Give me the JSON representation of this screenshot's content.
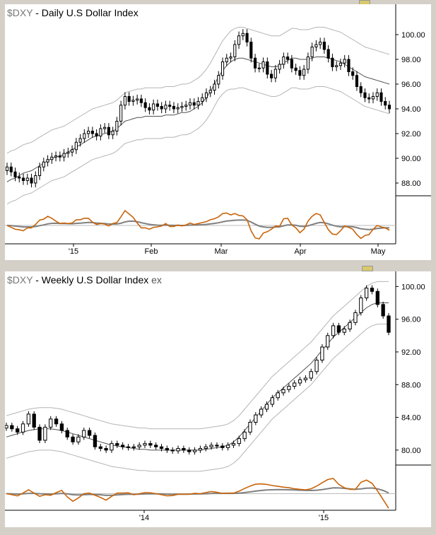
{
  "chart_data": [
    {
      "type": "candlestick",
      "title_symbol": "$DXY",
      "title": "- Daily  U.S Dollar Index",
      "ylim": [
        86.0,
        102.0
      ],
      "yticks": [
        "100.00",
        "98.00",
        "96.00",
        "94.00",
        "92.00",
        "90.00",
        "88.00"
      ],
      "xticks": [
        "'15",
        "Feb",
        "Mar",
        "Apr",
        "May"
      ],
      "legend_placement": "none",
      "series": [
        {
          "name": "Price",
          "values": [
            89.3,
            88.9,
            88.5,
            88.4,
            88.2,
            88.4,
            88.0,
            88.6,
            89.3,
            89.7,
            89.9,
            90.1,
            90.2,
            90.1,
            90.4,
            90.5,
            90.7,
            91.3,
            91.6,
            92.0,
            92.2,
            92.0,
            91.8,
            92.4,
            92.5,
            91.9,
            92.2,
            93.0,
            94.3,
            95.0,
            94.6,
            94.7,
            94.8,
            94.5,
            94.1,
            93.9,
            94.4,
            94.2,
            94.0,
            94.3,
            94.2,
            94.0,
            94.1,
            94.2,
            94.3,
            94.5,
            94.3,
            94.6,
            94.9,
            95.3,
            95.5,
            96.0,
            96.7,
            97.8,
            98.1,
            98.2,
            99.2,
            99.9,
            100.1,
            99.4,
            98.1,
            97.3,
            97.3,
            97.8,
            96.8,
            96.5,
            97.2,
            97.6,
            98.2,
            98.0,
            97.3,
            97.1,
            96.7,
            97.2,
            98.2,
            99.0,
            99.2,
            99.4,
            98.8,
            98.1,
            97.4,
            97.5,
            97.7,
            98.0,
            97.0,
            96.7,
            95.8,
            95.3,
            94.9,
            94.8,
            95.0,
            95.3,
            94.6,
            94.3,
            94.0
          ]
        },
        {
          "name": "Upper band",
          "values": [
            90.4,
            90.6,
            90.7,
            90.9,
            91.1,
            91.2,
            91.3,
            91.5,
            91.7,
            91.9,
            92.1,
            92.3,
            92.4,
            92.5,
            92.6,
            92.8,
            93.0,
            93.2,
            93.4,
            93.6,
            93.8,
            94.0,
            94.1,
            94.2,
            94.3,
            94.4,
            94.5,
            94.7,
            95.0,
            95.3,
            95.4,
            95.5,
            95.6,
            95.6,
            95.7,
            95.7,
            95.7,
            95.7,
            95.7,
            95.8,
            95.8,
            95.8,
            95.9,
            96.0,
            96.0,
            96.1,
            96.3,
            96.5,
            96.8,
            97.2,
            97.7,
            98.3,
            98.9,
            99.5,
            99.9,
            100.3,
            100.5,
            100.6,
            100.6,
            100.5,
            100.4,
            100.3,
            100.2,
            100.1,
            100.0,
            99.9,
            99.9,
            99.9,
            100.1,
            100.3,
            100.5,
            100.5,
            100.4,
            100.4,
            100.4,
            100.5,
            100.6,
            100.6,
            100.6,
            100.5,
            100.4,
            100.3,
            100.2,
            100.0,
            99.8,
            99.6,
            99.4,
            99.2,
            99.0,
            98.9,
            98.8,
            98.7,
            98.6,
            98.5,
            98.4
          ]
        },
        {
          "name": "Middle band",
          "values": [
            88.1,
            88.3,
            88.4,
            88.6,
            88.8,
            88.9,
            89.0,
            89.2,
            89.4,
            89.6,
            89.8,
            90.0,
            90.1,
            90.2,
            90.3,
            90.5,
            90.7,
            90.9,
            91.1,
            91.3,
            91.5,
            91.7,
            91.8,
            91.9,
            92.0,
            92.1,
            92.2,
            92.4,
            92.7,
            93.0,
            93.1,
            93.2,
            93.3,
            93.3,
            93.4,
            93.4,
            93.4,
            93.4,
            93.4,
            93.5,
            93.5,
            93.5,
            93.6,
            93.7,
            93.7,
            93.8,
            94.0,
            94.2,
            94.5,
            94.9,
            95.4,
            96.0,
            96.6,
            97.1,
            97.5,
            97.8,
            98.0,
            98.1,
            98.1,
            98.0,
            97.9,
            97.8,
            97.7,
            97.6,
            97.5,
            97.4,
            97.4,
            97.5,
            97.7,
            97.9,
            98.1,
            98.1,
            98.0,
            98.0,
            98.0,
            98.1,
            98.2,
            98.2,
            98.2,
            98.1,
            98.0,
            97.9,
            97.8,
            97.6,
            97.4,
            97.2,
            97.0,
            96.8,
            96.6,
            96.5,
            96.4,
            96.3,
            96.2,
            96.1,
            96.0
          ]
        },
        {
          "name": "Lower band",
          "values": [
            86.3,
            86.5,
            86.6,
            86.8,
            87.0,
            87.1,
            87.2,
            87.4,
            87.6,
            87.8,
            88.0,
            88.2,
            88.3,
            88.4,
            88.5,
            88.7,
            88.9,
            89.1,
            89.3,
            89.5,
            89.7,
            89.9,
            90.0,
            90.1,
            90.2,
            90.3,
            90.4,
            90.6,
            90.9,
            91.2,
            91.3,
            91.4,
            91.5,
            91.5,
            91.6,
            91.6,
            91.6,
            91.6,
            91.6,
            91.7,
            91.7,
            91.7,
            91.8,
            91.9,
            91.9,
            92.0,
            92.2,
            92.4,
            92.7,
            93.1,
            93.6,
            94.2,
            94.8,
            95.2,
            95.5,
            95.6,
            95.6,
            95.7,
            95.7,
            95.6,
            95.5,
            95.4,
            95.3,
            95.2,
            95.1,
            95.0,
            95.0,
            95.1,
            95.3,
            95.5,
            95.7,
            95.7,
            95.6,
            95.6,
            95.6,
            95.7,
            95.8,
            95.8,
            95.8,
            95.7,
            95.6,
            95.5,
            95.4,
            95.2,
            95.0,
            94.8,
            94.6,
            94.4,
            94.2,
            94.1,
            94.0,
            93.9,
            93.8,
            93.7,
            93.6
          ]
        }
      ]
    },
    {
      "type": "candlestick",
      "title_symbol": "$DXY",
      "title": "- Weekly  U.S Dollar Index",
      "title_suffix": "ex",
      "ylim": [
        78.0,
        101.5
      ],
      "yticks": [
        "100.00",
        "96.00",
        "92.00",
        "88.00",
        "84.00",
        "80.00"
      ],
      "xticks": [
        "'14",
        "'15"
      ],
      "legend_placement": "none",
      "series": [
        {
          "name": "Price",
          "values": [
            83.0,
            82.6,
            82.2,
            83.2,
            84.4,
            82.8,
            81.2,
            82.8,
            83.8,
            83.2,
            82.4,
            81.6,
            81.0,
            81.6,
            82.4,
            81.8,
            80.4,
            80.2,
            80.0,
            80.8,
            80.6,
            80.4,
            80.3,
            80.4,
            80.6,
            80.8,
            80.6,
            80.4,
            80.2,
            80.0,
            79.9,
            80.2,
            80.0,
            79.8,
            80.0,
            80.2,
            80.4,
            80.6,
            80.5,
            80.3,
            80.6,
            80.8,
            81.4,
            82.2,
            83.4,
            84.3,
            85.0,
            85.6,
            86.4,
            87.0,
            87.4,
            87.8,
            88.2,
            88.6,
            88.8,
            89.6,
            91.0,
            92.6,
            94.0,
            95.2,
            94.4,
            94.8,
            95.6,
            96.8,
            98.6,
            99.8,
            99.4,
            97.8,
            96.4,
            94.4
          ]
        },
        {
          "name": "Upper band",
          "values": [
            84.2,
            84.4,
            84.6,
            84.8,
            85.0,
            85.1,
            85.2,
            85.2,
            85.2,
            85.1,
            85.0,
            84.8,
            84.6,
            84.4,
            84.2,
            84.0,
            83.8,
            83.6,
            83.4,
            83.2,
            83.1,
            83.0,
            82.9,
            82.8,
            82.7,
            82.7,
            82.6,
            82.6,
            82.6,
            82.6,
            82.6,
            82.6,
            82.6,
            82.6,
            82.6,
            82.6,
            82.7,
            82.8,
            82.9,
            83.0,
            83.2,
            83.6,
            84.2,
            85.0,
            85.8,
            86.6,
            87.4,
            88.2,
            89.0,
            89.6,
            90.2,
            90.8,
            91.4,
            92.0,
            92.6,
            93.2,
            94.0,
            94.8,
            95.6,
            96.4,
            97.0,
            97.6,
            98.2,
            98.8,
            99.4,
            100.0,
            100.4,
            100.6,
            100.6,
            100.6
          ]
        },
        {
          "name": "Middle band",
          "values": [
            81.6,
            81.8,
            82.0,
            82.2,
            82.4,
            82.5,
            82.6,
            82.6,
            82.6,
            82.5,
            82.4,
            82.2,
            82.0,
            81.8,
            81.6,
            81.4,
            81.2,
            81.0,
            80.8,
            80.6,
            80.5,
            80.4,
            80.3,
            80.2,
            80.1,
            80.1,
            80.0,
            80.0,
            80.0,
            80.0,
            80.0,
            80.0,
            80.0,
            80.0,
            80.0,
            80.0,
            80.1,
            80.2,
            80.3,
            80.4,
            80.6,
            81.0,
            81.6,
            82.4,
            83.2,
            84.0,
            84.8,
            85.6,
            86.4,
            87.0,
            87.6,
            88.2,
            88.8,
            89.4,
            90.0,
            90.6,
            91.4,
            92.2,
            93.0,
            93.8,
            94.4,
            95.0,
            95.6,
            96.2,
            96.8,
            97.4,
            97.8,
            98.0,
            98.0,
            98.0
          ]
        },
        {
          "name": "Lower band",
          "values": [
            79.0,
            79.2,
            79.4,
            79.6,
            79.8,
            79.9,
            80.0,
            80.0,
            80.0,
            79.9,
            79.8,
            79.6,
            79.4,
            79.2,
            79.0,
            78.8,
            78.6,
            78.4,
            78.2,
            78.0,
            77.9,
            77.8,
            77.7,
            77.6,
            77.5,
            77.5,
            77.4,
            77.4,
            77.4,
            77.4,
            77.4,
            77.4,
            77.4,
            77.4,
            77.4,
            77.4,
            77.5,
            77.6,
            77.7,
            77.8,
            78.0,
            78.4,
            79.0,
            79.8,
            80.6,
            81.4,
            82.2,
            83.0,
            83.8,
            84.4,
            85.0,
            85.6,
            86.2,
            86.8,
            87.4,
            88.0,
            88.8,
            89.6,
            90.4,
            91.2,
            91.8,
            92.4,
            93.0,
            93.6,
            94.2,
            94.8,
            95.2,
            95.4,
            95.4,
            95.4
          ]
        }
      ]
    }
  ],
  "colors": {
    "oscillator": "#c8640a",
    "signal": "#808080",
    "candle": "#000000",
    "band": "#b4b4b4",
    "middle_band": "#505050"
  }
}
